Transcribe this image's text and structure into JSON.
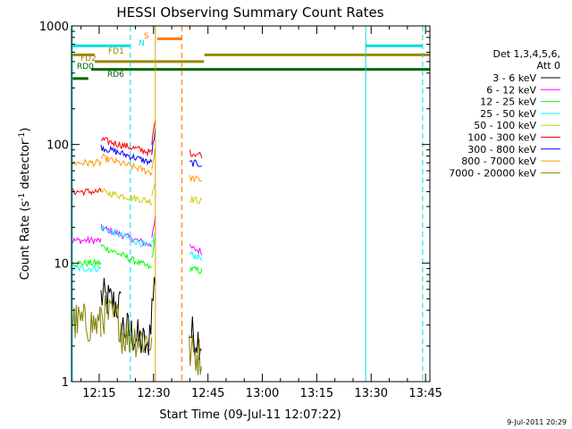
{
  "chart_data": {
    "type": "line",
    "title": "HESSI Observing Summary Count Rates",
    "xlabel": "Start Time (09-Jul-11 12:07:22)",
    "ylabel": "Count Rate (s",
    "ylabel_sup1": "-1",
    "ylabel_mid": " detector",
    "ylabel_sup2": "-1",
    "ylabel_end": ")",
    "yscale": "log",
    "ylim": [
      1,
      1000
    ],
    "xlim_minutes": [
      7.37,
      106.2
    ],
    "x_unit": "minutes after 12:00",
    "x_ticks": [
      {
        "label": "12:15",
        "min": 15
      },
      {
        "label": "12:30",
        "min": 30
      },
      {
        "label": "12:45",
        "min": 45
      },
      {
        "label": "13:00",
        "min": 60
      },
      {
        "label": "13:15",
        "min": 75
      },
      {
        "label": "13:30",
        "min": 90
      },
      {
        "label": "13:45",
        "min": 105
      }
    ],
    "y_ticks": [
      {
        "label": "1",
        "value": 1
      },
      {
        "label": "10",
        "value": 10
      },
      {
        "label": "100",
        "value": 100
      },
      {
        "label": "1000",
        "value": 1000
      }
    ],
    "legend_header": [
      "Det 1,3,4,5,6,",
      "Att 0"
    ],
    "series": [
      {
        "name": "3 - 6 keV",
        "color": "#000000",
        "segments": [
          {
            "x0": 15.5,
            "x1": 21.0,
            "v0": 5.2,
            "v1": 4.2
          },
          {
            "x0": 21.0,
            "x1": 28.0,
            "v0": 3.0,
            "v1": 2.0
          },
          {
            "x0": 28.0,
            "x1": 30.5,
            "v0": 1.5,
            "v1": 8.0
          },
          {
            "x0": 39.8,
            "x1": 43.2,
            "v0": 2.6,
            "v1": 2.2
          }
        ]
      },
      {
        "name": "6 - 12 keV",
        "color": "#ff00ff",
        "segments": [
          {
            "x0": 7.5,
            "x1": 15.5,
            "v0": 15.5,
            "v1": 15.5
          },
          {
            "x0": 15.5,
            "x1": 29.5,
            "v0": 20.0,
            "v1": 14.0
          },
          {
            "x0": 29.5,
            "x1": 30.5,
            "v0": 17.0,
            "v1": 25.0
          },
          {
            "x0": 40.0,
            "x1": 43.3,
            "v0": 13.5,
            "v1": 12.5
          }
        ]
      },
      {
        "name": "12 - 25 keV",
        "color": "#00ff00",
        "segments": [
          {
            "x0": 7.5,
            "x1": 15.5,
            "v0": 10.0,
            "v1": 10.0
          },
          {
            "x0": 15.5,
            "x1": 29.5,
            "v0": 14.0,
            "v1": 9.0
          },
          {
            "x0": 29.5,
            "x1": 30.5,
            "v0": 11.0,
            "v1": 16.0
          },
          {
            "x0": 40.0,
            "x1": 43.3,
            "v0": 9.0,
            "v1": 8.5
          }
        ]
      },
      {
        "name": "25 - 50 keV",
        "color": "#00ffff",
        "segments": [
          {
            "x0": 7.5,
            "x1": 15.5,
            "v0": 9.0,
            "v1": 9.0
          },
          {
            "x0": 15.5,
            "x1": 29.5,
            "v0": 20.0,
            "v1": 13.5
          },
          {
            "x0": 29.5,
            "x1": 30.5,
            "v0": 15.0,
            "v1": 18.0
          },
          {
            "x0": 40.0,
            "x1": 43.3,
            "v0": 12.0,
            "v1": 11.0
          }
        ]
      },
      {
        "name": "50 - 100 keV",
        "color": "#cccc00",
        "segments": [
          {
            "x0": 15.5,
            "x1": 29.5,
            "v0": 40.0,
            "v1": 33.0
          },
          {
            "x0": 29.5,
            "x1": 30.5,
            "v0": 38.0,
            "v1": 48.0
          },
          {
            "x0": 40.0,
            "x1": 43.3,
            "v0": 35.0,
            "v1": 33.0
          }
        ]
      },
      {
        "name": "100 - 300 keV",
        "color": "#ff0000",
        "segments": [
          {
            "x0": 7.5,
            "x1": 15.5,
            "v0": 40.0,
            "v1": 40.0
          },
          {
            "x0": 15.5,
            "x1": 29.5,
            "v0": 110.0,
            "v1": 85.0
          },
          {
            "x0": 29.5,
            "x1": 30.5,
            "v0": 100.0,
            "v1": 170.0
          },
          {
            "x0": 40.0,
            "x1": 43.3,
            "v0": 85.0,
            "v1": 82.0
          }
        ]
      },
      {
        "name": "300 - 800 keV",
        "color": "#0000ff",
        "segments": [
          {
            "x0": 15.5,
            "x1": 29.5,
            "v0": 95.0,
            "v1": 70.0
          },
          {
            "x0": 29.5,
            "x1": 30.5,
            "v0": 85.0,
            "v1": 130.0
          },
          {
            "x0": 40.0,
            "x1": 43.3,
            "v0": 70.0,
            "v1": 68.0
          }
        ]
      },
      {
        "name": "800 - 7000 keV",
        "color": "#ff9900",
        "segments": [
          {
            "x0": 7.5,
            "x1": 15.5,
            "v0": 70.0,
            "v1": 70.0
          },
          {
            "x0": 15.5,
            "x1": 29.5,
            "v0": 78.0,
            "v1": 58.0
          },
          {
            "x0": 29.5,
            "x1": 30.5,
            "v0": 62.0,
            "v1": 95.0
          },
          {
            "x0": 40.0,
            "x1": 43.3,
            "v0": 52.0,
            "v1": 50.0
          }
        ]
      },
      {
        "name": "7000 - 20000 keV",
        "color": "#808000",
        "segments": [
          {
            "x0": 7.5,
            "x1": 15.5,
            "v0": 3.2,
            "v1": 3.0
          },
          {
            "x0": 15.5,
            "x1": 21.0,
            "v0": 3.8,
            "v1": 3.2
          },
          {
            "x0": 21.0,
            "x1": 29.5,
            "v0": 2.5,
            "v1": 2.2
          },
          {
            "x0": 39.8,
            "x1": 43.2,
            "v0": 1.8,
            "v1": 1.6
          }
        ]
      }
    ],
    "flag_bars": [
      {
        "label": "S",
        "color": "#ff7700",
        "value": 780,
        "segments": [
          [
            31.0,
            37.8
          ]
        ]
      },
      {
        "label": "N",
        "color": "#00dddd",
        "value": 680,
        "segments": [
          [
            7.4,
            23.6
          ],
          [
            88.5,
            104.2
          ]
        ]
      },
      {
        "label": "FD1",
        "color": "#998800",
        "value": 570,
        "segments": [
          [
            7.4,
            13.8
          ],
          [
            44.0,
            106.2
          ]
        ]
      },
      {
        "label": "FD2",
        "color": "#998800",
        "value": 500,
        "segments": [
          [
            13.8,
            43.9
          ]
        ]
      },
      {
        "label": "RD0",
        "color": "#006600",
        "value": 430,
        "segments": [
          [
            12.8,
            106.2
          ]
        ]
      },
      {
        "label": "RD6",
        "color": "#006600",
        "value": 360,
        "segments": [
          [
            7.4,
            12.0
          ]
        ]
      }
    ],
    "vlines": [
      {
        "x": 7.6,
        "color": "#00dddd",
        "style": "solid"
      },
      {
        "x": 23.6,
        "color": "#00dddd",
        "style": "dashed"
      },
      {
        "x": 30.5,
        "color": "#d4a300",
        "style": "solid"
      },
      {
        "x": 37.8,
        "color": "#ff7700",
        "style": "dashed"
      },
      {
        "x": 88.5,
        "color": "#00dddd",
        "style": "solid"
      },
      {
        "x": 104.2,
        "color": "#00dddd",
        "style": "dashed"
      }
    ],
    "grid": false,
    "legend_position": "right"
  },
  "footer": {
    "date_stamp": "9-Jul-2011 20:29"
  }
}
